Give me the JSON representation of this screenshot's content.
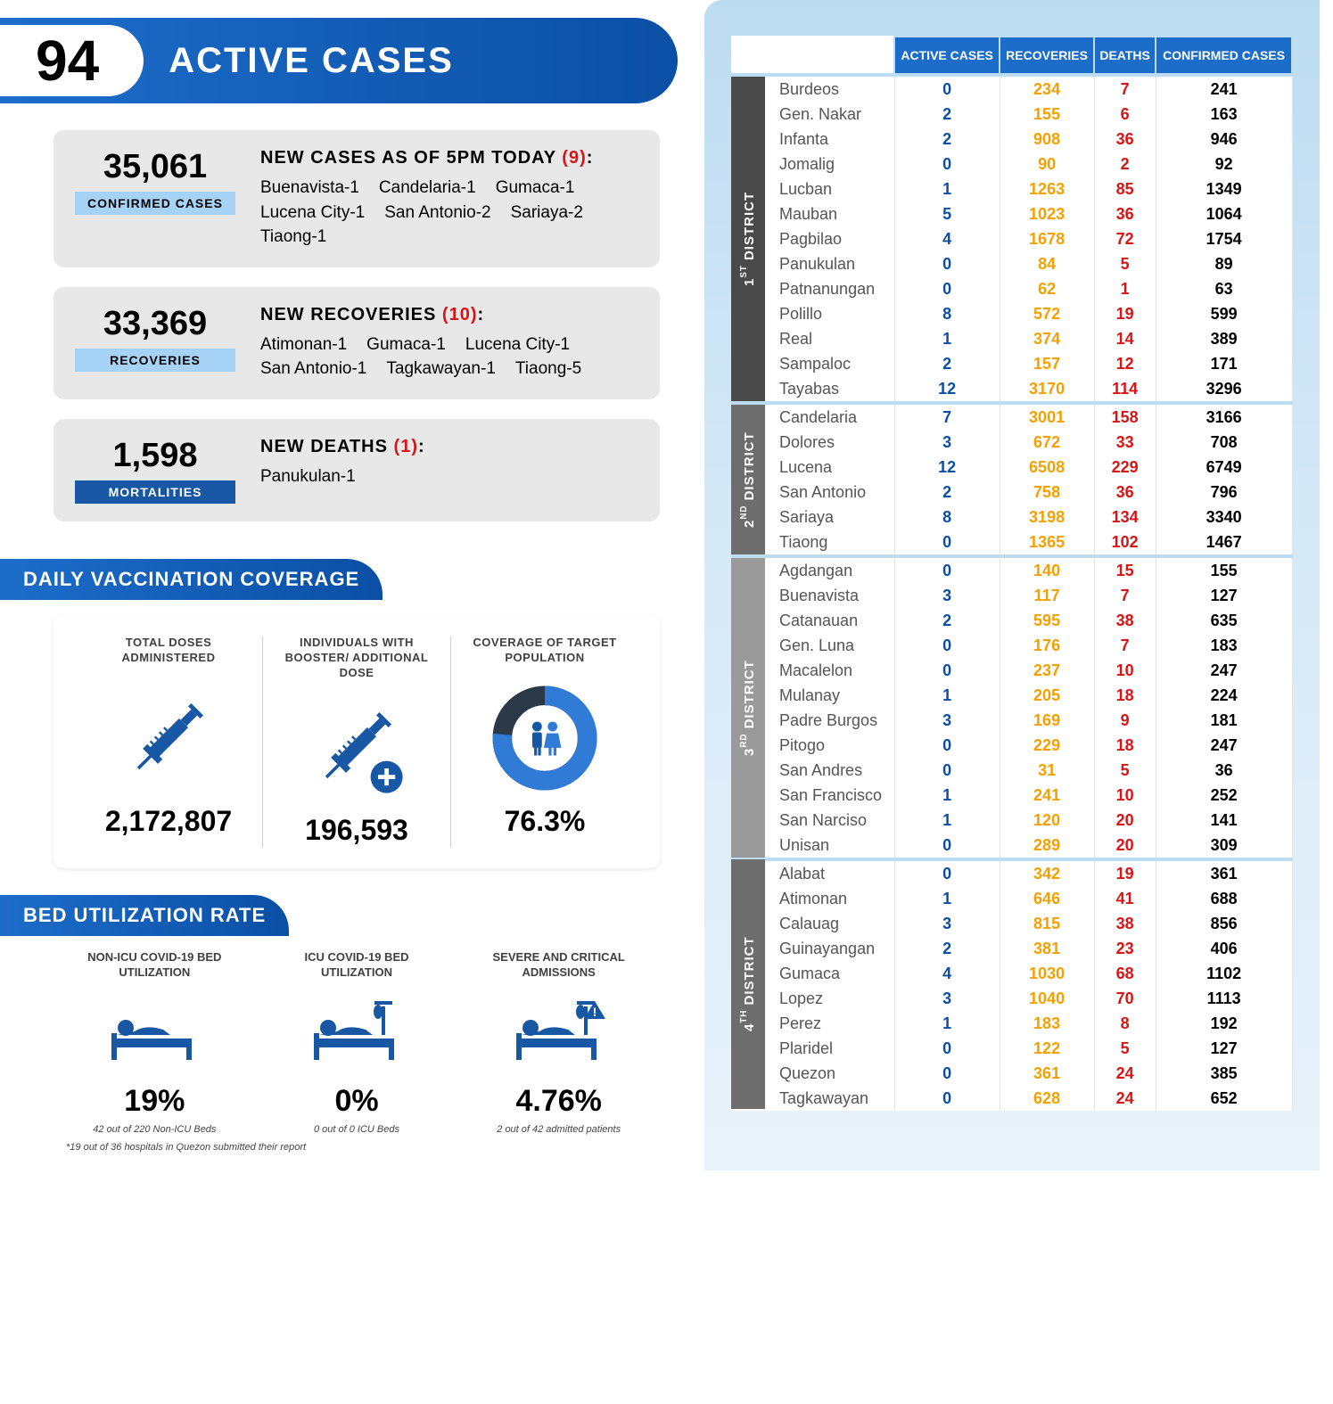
{
  "banner": {
    "number": "94",
    "label": "ACTIVE CASES"
  },
  "stats": {
    "confirmed": {
      "value": "35,061",
      "tag": "CONFIRMED CASES",
      "title_pre": "NEW CASES AS OF 5PM TODAY",
      "title_red": "(9)",
      "title_post": ":",
      "items": [
        "Buenavista-1",
        "Candelaria-1",
        "Gumaca-1",
        "Lucena City-1",
        "San Antonio-2",
        "Sariaya-2",
        "Tiaong-1"
      ]
    },
    "recoveries": {
      "value": "33,369",
      "tag": "RECOVERIES",
      "title_pre": "NEW RECOVERIES",
      "title_red": "(10)",
      "title_post": ":",
      "items": [
        "Atimonan-1",
        "Gumaca-1",
        "Lucena City-1",
        "San Antonio-1",
        "Tagkawayan-1",
        "Tiaong-5"
      ]
    },
    "mortalities": {
      "value": "1,598",
      "tag": "MORTALITIES",
      "title_pre": "NEW DEATHS",
      "title_red": "(1)",
      "title_post": ":",
      "items": [
        "Panukulan-1"
      ]
    }
  },
  "sections": {
    "vacc_header": "DAILY VACCINATION COVERAGE",
    "bed_header": "BED UTILIZATION RATE"
  },
  "vacc": [
    {
      "label": "TOTAL DOSES ADMINISTERED",
      "value": "2,172,807",
      "icon": "syringe"
    },
    {
      "label": "INDIVIDUALS WITH BOOSTER/ ADDITIONAL DOSE",
      "value": "196,593",
      "icon": "syringe-plus"
    },
    {
      "label": "COVERAGE OF TARGET POPULATION",
      "value": "76.3%",
      "icon": "donut",
      "pct": 76.3
    }
  ],
  "bed": [
    {
      "label": "NON-ICU COVID-19 BED UTILIZATION",
      "value": "19%",
      "sub": "42 out of 220  Non-ICU Beds",
      "icon": "bed"
    },
    {
      "label": "ICU COVID-19 BED UTILIZATION",
      "value": "0%",
      "sub": "0 out of 0 ICU Beds",
      "icon": "bed-iv"
    },
    {
      "label": "SEVERE AND CRITICAL ADMISSIONS",
      "value": "4.76%",
      "sub": "2 out of 42 admitted patients",
      "icon": "bed-iv-alert"
    }
  ],
  "bed_footnote": "*19 out of 36 hospitals in Quezon submitted their report",
  "table": {
    "headers": [
      "ACTIVE CASES",
      "RECOVERIES",
      "DEATHS",
      "CONFIRMED CASES"
    ],
    "districts": [
      {
        "name": "1ST DISTRICT",
        "short": "1",
        "suf": "ST",
        "klass": "d1",
        "rows": [
          [
            "Burdeos",
            "0",
            "234",
            "7",
            "241"
          ],
          [
            "Gen. Nakar",
            "2",
            "155",
            "6",
            "163"
          ],
          [
            "Infanta",
            "2",
            "908",
            "36",
            "946"
          ],
          [
            "Jomalig",
            "0",
            "90",
            "2",
            "92"
          ],
          [
            "Lucban",
            "1",
            "1263",
            "85",
            "1349"
          ],
          [
            "Mauban",
            "5",
            "1023",
            "36",
            "1064"
          ],
          [
            "Pagbilao",
            "4",
            "1678",
            "72",
            "1754"
          ],
          [
            "Panukulan",
            "0",
            "84",
            "5",
            "89"
          ],
          [
            "Patnanungan",
            "0",
            "62",
            "1",
            "63"
          ],
          [
            "Polillo",
            "8",
            "572",
            "19",
            "599"
          ],
          [
            "Real",
            "1",
            "374",
            "14",
            "389"
          ],
          [
            "Sampaloc",
            "2",
            "157",
            "12",
            "171"
          ],
          [
            "Tayabas",
            "12",
            "3170",
            "114",
            "3296"
          ]
        ]
      },
      {
        "name": "2ND DISTRICT",
        "short": "2",
        "suf": "ND",
        "klass": "d2",
        "rows": [
          [
            "Candelaria",
            "7",
            "3001",
            "158",
            "3166"
          ],
          [
            "Dolores",
            "3",
            "672",
            "33",
            "708"
          ],
          [
            "Lucena",
            "12",
            "6508",
            "229",
            "6749"
          ],
          [
            "San Antonio",
            "2",
            "758",
            "36",
            "796"
          ],
          [
            "Sariaya",
            "8",
            "3198",
            "134",
            "3340"
          ],
          [
            "Tiaong",
            "0",
            "1365",
            "102",
            "1467"
          ]
        ]
      },
      {
        "name": "3RD DISTRICT",
        "short": "3",
        "suf": "RD",
        "klass": "d3",
        "rows": [
          [
            "Agdangan",
            "0",
            "140",
            "15",
            "155"
          ],
          [
            "Buenavista",
            "3",
            "117",
            "7",
            "127"
          ],
          [
            "Catanauan",
            "2",
            "595",
            "38",
            "635"
          ],
          [
            "Gen. Luna",
            "0",
            "176",
            "7",
            "183"
          ],
          [
            "Macalelon",
            "0",
            "237",
            "10",
            "247"
          ],
          [
            "Mulanay",
            "1",
            "205",
            "18",
            "224"
          ],
          [
            "Padre Burgos",
            "3",
            "169",
            "9",
            "181"
          ],
          [
            "Pitogo",
            "0",
            "229",
            "18",
            "247"
          ],
          [
            "San Andres",
            "0",
            "31",
            "5",
            "36"
          ],
          [
            "San Francisco",
            "1",
            "241",
            "10",
            "252"
          ],
          [
            "San Narciso",
            "1",
            "120",
            "20",
            "141"
          ],
          [
            "Unisan",
            "0",
            "289",
            "20",
            "309"
          ]
        ]
      },
      {
        "name": "4TH DISTRICT",
        "short": "4",
        "suf": "TH",
        "klass": "d4",
        "rows": [
          [
            "Alabat",
            "0",
            "342",
            "19",
            "361"
          ],
          [
            "Atimonan",
            "1",
            "646",
            "41",
            "688"
          ],
          [
            "Calauag",
            "3",
            "815",
            "38",
            "856"
          ],
          [
            "Guinayangan",
            "2",
            "381",
            "23",
            "406"
          ],
          [
            "Gumaca",
            "4",
            "1030",
            "68",
            "1102"
          ],
          [
            "Lopez",
            "3",
            "1040",
            "70",
            "1113"
          ],
          [
            "Perez",
            "1",
            "183",
            "8",
            "192"
          ],
          [
            "Plaridel",
            "0",
            "122",
            "5",
            "127"
          ],
          [
            "Quezon",
            "0",
            "361",
            "24",
            "385"
          ],
          [
            "Tagkawayan",
            "0",
            "628",
            "24",
            "652"
          ]
        ]
      }
    ]
  },
  "colors": {
    "blue": "#1857a4",
    "blue_light": "#a6d3f5",
    "orange": "#f5a000",
    "red": "#d91414",
    "dark": "#2b3847"
  }
}
